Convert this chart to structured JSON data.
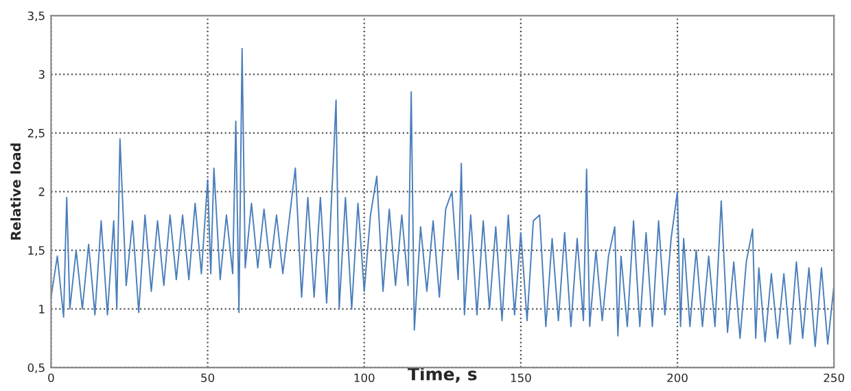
{
  "chart_data": {
    "type": "line",
    "xlabel": "Time, s",
    "ylabel": "Relative load",
    "xlim": [
      0,
      250
    ],
    "xticks": [
      0,
      50,
      100,
      150,
      200,
      250
    ],
    "ylim": [
      0.5,
      3.5
    ],
    "yticks": [
      {
        "value": 0.5,
        "label": "0,5"
      },
      1,
      {
        "value": 1.5,
        "label": "1,5"
      },
      2,
      {
        "value": 2.5,
        "label": "2,5"
      },
      3,
      {
        "value": 3.5,
        "label": "3,5"
      }
    ],
    "grid": true,
    "legend": false,
    "series": [
      {
        "color": "#4a7ebb",
        "x": [
          0,
          2,
          4,
          5,
          6,
          8,
          10,
          12,
          14,
          16,
          18,
          20,
          21,
          22,
          24,
          26,
          28,
          30,
          32,
          34,
          36,
          38,
          40,
          42,
          44,
          46,
          48,
          50,
          51,
          52,
          54,
          56,
          58,
          59,
          60,
          61,
          62,
          64,
          66,
          68,
          70,
          72,
          74,
          76,
          78,
          80,
          82,
          84,
          86,
          88,
          90,
          91,
          92,
          94,
          96,
          98,
          100,
          102,
          104,
          106,
          108,
          110,
          112,
          114,
          115,
          116,
          118,
          120,
          122,
          124,
          126,
          128,
          130,
          131,
          132,
          134,
          136,
          138,
          140,
          142,
          144,
          146,
          148,
          150,
          152,
          154,
          156,
          158,
          160,
          162,
          164,
          166,
          168,
          170,
          171,
          172,
          174,
          176,
          178,
          180,
          181,
          182,
          184,
          186,
          188,
          190,
          192,
          194,
          196,
          198,
          200,
          201,
          202,
          204,
          206,
          208,
          210,
          212,
          214,
          216,
          218,
          220,
          222,
          224,
          225,
          226,
          228,
          230,
          232,
          234,
          236,
          238,
          240,
          242,
          244,
          246,
          248,
          250
        ],
        "values": [
          1.1,
          1.45,
          0.93,
          1.95,
          1.0,
          1.5,
          1.0,
          1.55,
          0.95,
          1.75,
          0.95,
          1.75,
          1.0,
          2.45,
          1.2,
          1.75,
          0.97,
          1.8,
          1.15,
          1.75,
          1.2,
          1.8,
          1.25,
          1.8,
          1.25,
          1.9,
          1.3,
          2.1,
          1.3,
          2.2,
          1.25,
          1.8,
          1.3,
          2.6,
          0.97,
          3.22,
          1.35,
          1.9,
          1.35,
          1.85,
          1.35,
          1.8,
          1.3,
          1.75,
          2.2,
          1.1,
          1.95,
          1.1,
          1.95,
          1.05,
          2.18,
          2.78,
          1.0,
          1.95,
          1.0,
          1.9,
          1.15,
          1.8,
          2.13,
          1.15,
          1.85,
          1.2,
          1.8,
          1.2,
          2.85,
          0.82,
          1.7,
          1.15,
          1.75,
          1.1,
          1.85,
          2.0,
          1.25,
          2.24,
          0.95,
          1.8,
          0.95,
          1.75,
          1.0,
          1.7,
          0.9,
          1.8,
          0.95,
          1.65,
          0.9,
          1.75,
          1.8,
          0.85,
          1.6,
          0.9,
          1.65,
          0.85,
          1.6,
          0.9,
          2.19,
          0.85,
          1.5,
          0.9,
          1.45,
          1.7,
          0.77,
          1.45,
          0.85,
          1.75,
          0.85,
          1.65,
          0.85,
          1.75,
          0.95,
          1.6,
          2.0,
          0.85,
          1.6,
          0.85,
          1.5,
          0.85,
          1.45,
          0.85,
          1.92,
          0.8,
          1.4,
          0.75,
          1.4,
          1.68,
          0.75,
          1.35,
          0.72,
          1.3,
          0.75,
          1.3,
          0.7,
          1.4,
          0.75,
          1.35,
          0.68,
          1.35,
          0.7,
          1.2
        ]
      }
    ]
  }
}
